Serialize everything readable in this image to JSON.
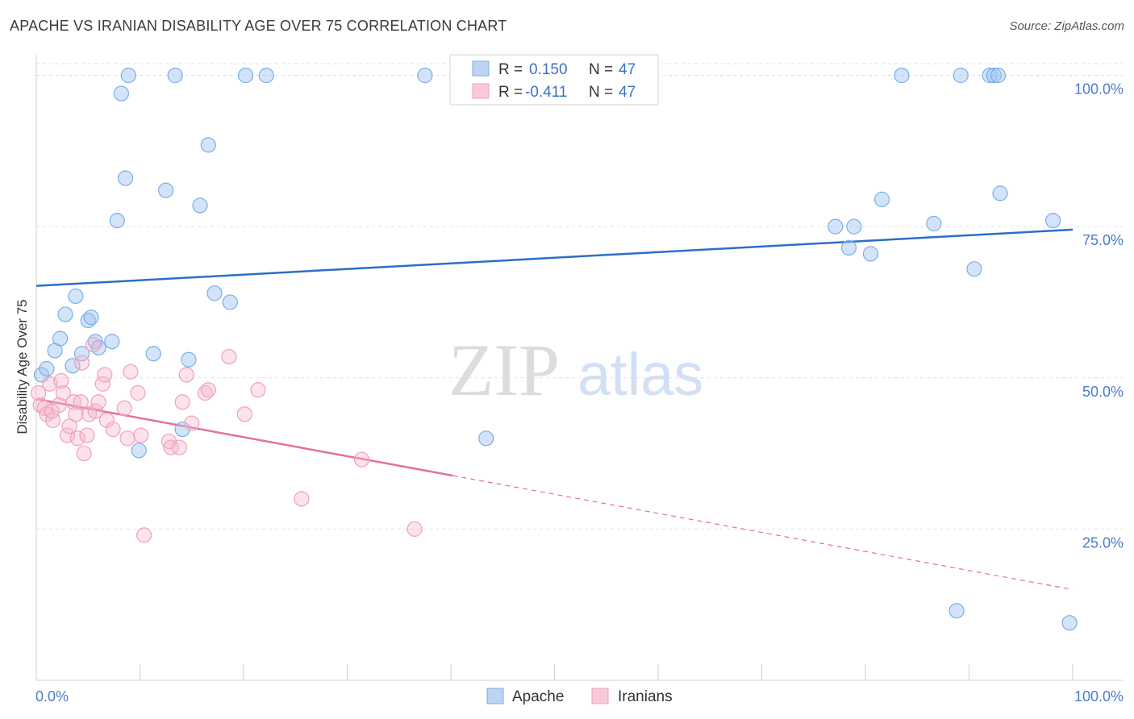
{
  "title": "APACHE VS IRANIAN DISABILITY AGE OVER 75 CORRELATION CHART",
  "source": "Source: ZipAtlas.com",
  "colors": {
    "apache": "#7aaee8",
    "apache_line": "#2a6fc9",
    "iranians": "#f0a0bb",
    "iranians_line": "#e56f98",
    "tick": "#4a7cc9"
  },
  "chart_data": {
    "type": "scatter",
    "title": "APACHE VS IRANIAN DISABILITY AGE OVER 75 CORRELATION CHART",
    "xlabel": "",
    "ylabel": "Disability Age Over 75",
    "xlim": [
      0,
      100
    ],
    "ylim": [
      0,
      103
    ],
    "x_tick_labels": [
      "0.0%",
      "100.0%"
    ],
    "y_ticks": [
      25,
      50,
      75,
      100
    ],
    "y_tick_labels": [
      "25.0%",
      "50.0%",
      "75.0%",
      "100.0%"
    ],
    "grid": true,
    "legend_top": [
      {
        "r_label": "R =",
        "r_value": "0.150",
        "n_label": "N =",
        "n_value": "47"
      },
      {
        "r_label": "R =",
        "r_value": "-0.411",
        "n_label": "N =",
        "n_value": "47"
      }
    ],
    "series": [
      {
        "name": "Apache",
        "trend": {
          "x0": 0,
          "y0": 65.2,
          "x1": 100,
          "y1": 74.5,
          "solid_until": 100
        },
        "points": [
          [
            0.5,
            50.5
          ],
          [
            1.0,
            51.5
          ],
          [
            1.8,
            54.5
          ],
          [
            2.3,
            56.5
          ],
          [
            2.8,
            60.5
          ],
          [
            3.5,
            52
          ],
          [
            3.8,
            63.5
          ],
          [
            4.4,
            54
          ],
          [
            5.0,
            59.5
          ],
          [
            5.3,
            60
          ],
          [
            5.7,
            56
          ],
          [
            6.0,
            55
          ],
          [
            7.3,
            56
          ],
          [
            7.8,
            76
          ],
          [
            8.2,
            97
          ],
          [
            8.6,
            83
          ],
          [
            8.9,
            100
          ],
          [
            9.9,
            38
          ],
          [
            11.3,
            54
          ],
          [
            12.5,
            81
          ],
          [
            13.4,
            100
          ],
          [
            14.1,
            41.5
          ],
          [
            14.7,
            53
          ],
          [
            15.8,
            78.5
          ],
          [
            16.6,
            88.5
          ],
          [
            17.2,
            64
          ],
          [
            18.7,
            62.5
          ],
          [
            20.2,
            100
          ],
          [
            22.2,
            100
          ],
          [
            37.5,
            100
          ],
          [
            43.4,
            40
          ],
          [
            77.1,
            75
          ],
          [
            78.4,
            71.5
          ],
          [
            78.9,
            75
          ],
          [
            80.5,
            70.5
          ],
          [
            81.6,
            79.5
          ],
          [
            83.5,
            100
          ],
          [
            86.6,
            75.5
          ],
          [
            89.2,
            100
          ],
          [
            88.8,
            11.5
          ],
          [
            90.5,
            68
          ],
          [
            92.0,
            100
          ],
          [
            92.4,
            100
          ],
          [
            92.8,
            100
          ],
          [
            93.0,
            80.5
          ],
          [
            98.1,
            76
          ],
          [
            99.7,
            9.5
          ]
        ]
      },
      {
        "name": "Iranians",
        "trend": {
          "x0": 0,
          "y0": 46.5,
          "x1": 100,
          "y1": 15,
          "solid_until": 40.2
        },
        "points": [
          [
            0.4,
            45.5
          ],
          [
            0.8,
            45
          ],
          [
            1.0,
            44
          ],
          [
            1.3,
            49
          ],
          [
            1.6,
            43
          ],
          [
            2.2,
            45.5
          ],
          [
            2.4,
            49.5
          ],
          [
            2.6,
            47.5
          ],
          [
            3.0,
            40.5
          ],
          [
            3.2,
            42
          ],
          [
            3.6,
            46
          ],
          [
            3.8,
            44
          ],
          [
            4.0,
            40
          ],
          [
            4.3,
            46
          ],
          [
            4.4,
            52.5
          ],
          [
            4.6,
            37.5
          ],
          [
            4.9,
            40.5
          ],
          [
            5.1,
            44
          ],
          [
            5.5,
            55.5
          ],
          [
            5.7,
            44.5
          ],
          [
            6.0,
            46
          ],
          [
            6.4,
            49
          ],
          [
            6.6,
            50.5
          ],
          [
            6.8,
            43
          ],
          [
            7.4,
            41.5
          ],
          [
            8.5,
            45
          ],
          [
            8.8,
            40
          ],
          [
            9.1,
            51
          ],
          [
            9.8,
            47.5
          ],
          [
            10.1,
            40.5
          ],
          [
            10.4,
            24
          ],
          [
            12.8,
            39.5
          ],
          [
            13.0,
            38.5
          ],
          [
            13.8,
            38.5
          ],
          [
            14.1,
            46
          ],
          [
            14.5,
            50.5
          ],
          [
            15.0,
            42.5
          ],
          [
            16.3,
            47.5
          ],
          [
            16.6,
            48
          ],
          [
            18.6,
            53.5
          ],
          [
            20.1,
            44
          ],
          [
            21.4,
            48
          ],
          [
            25.6,
            30
          ],
          [
            31.4,
            36.5
          ],
          [
            36.5,
            25
          ],
          [
            0.2,
            47.5
          ],
          [
            1.5,
            44.5
          ]
        ]
      }
    ]
  },
  "bottom_legend": [
    "Apache",
    "Iranians"
  ],
  "watermark": {
    "zip": "ZIP",
    "atlas": "atlas"
  }
}
